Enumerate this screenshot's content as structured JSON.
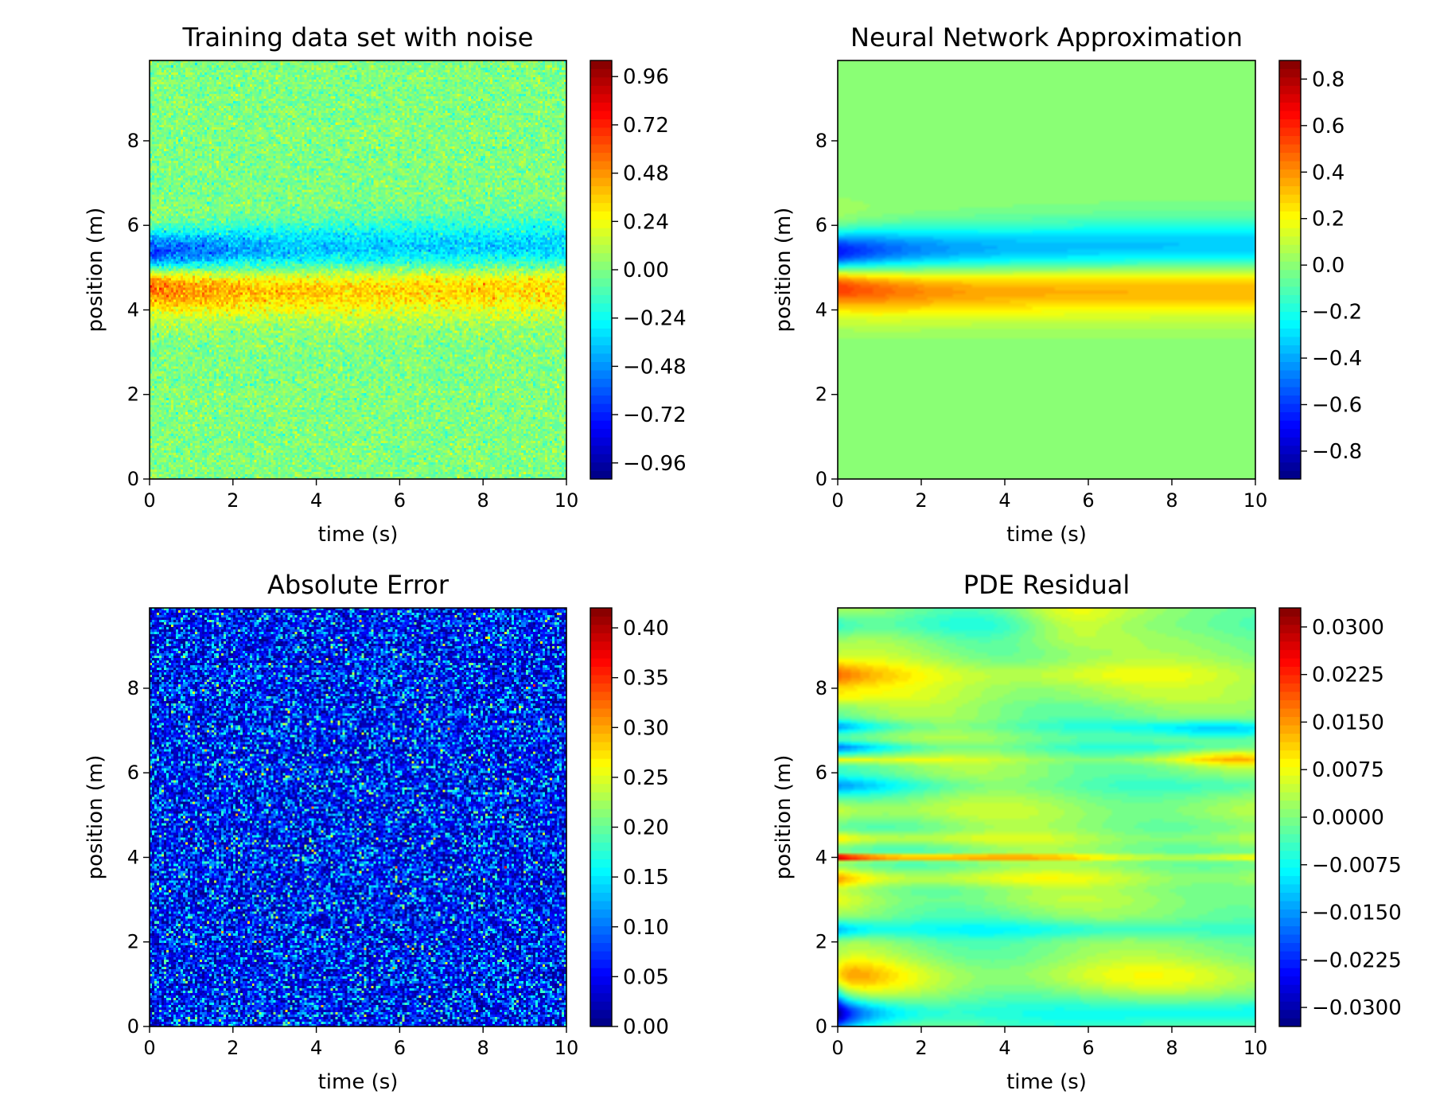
{
  "chart_data": [
    {
      "type": "heatmap",
      "title": "Training data set with noise",
      "xlabel": "time (s)",
      "ylabel": "position (m)",
      "xlim": [
        0,
        10
      ],
      "ylim": [
        0,
        9.9
      ],
      "x_ticks": [
        "0",
        "2",
        "4",
        "6",
        "8",
        "10"
      ],
      "y_ticks": [
        "0",
        "2",
        "4",
        "6",
        "8"
      ],
      "colormap": "jet",
      "colorbar": {
        "range": [
          -1.04,
          1.04
        ],
        "ticks": [
          -0.96,
          -0.72,
          -0.48,
          -0.24,
          0.0,
          0.24,
          0.48,
          0.72,
          0.96
        ],
        "tick_labels": [
          "−0.96",
          "−0.72",
          "−0.48",
          "−0.24",
          "0.00",
          "0.24",
          "0.48",
          "0.72",
          "0.96"
        ]
      },
      "field": "noisy damped wave: positive lobe near x = 4.5, negative lobe near x = 5.5, decaying with time"
    },
    {
      "type": "heatmap",
      "title": "Neural Network Approximation",
      "xlabel": "time (s)",
      "ylabel": "position (m)",
      "xlim": [
        0,
        10
      ],
      "ylim": [
        0,
        9.9
      ],
      "x_ticks": [
        "0",
        "2",
        "4",
        "6",
        "8",
        "10"
      ],
      "y_ticks": [
        "0",
        "2",
        "4",
        "6",
        "8"
      ],
      "colormap": "jet",
      "colorbar": {
        "range": [
          -0.92,
          0.88
        ],
        "ticks": [
          -0.8,
          -0.6,
          -0.4,
          -0.2,
          0.0,
          0.2,
          0.4,
          0.6,
          0.8
        ],
        "tick_labels": [
          "−0.8",
          "−0.6",
          "−0.4",
          "−0.2",
          "0.0",
          "0.2",
          "0.4",
          "0.6",
          "0.8"
        ]
      },
      "field": "smooth damped wave: maximum about 0.85 at t = 0, x = 4.5; minimum about -0.9 at t = 0, x = 5.5"
    },
    {
      "type": "heatmap",
      "title": "Absolute Error",
      "xlabel": "time (s)",
      "ylabel": "position (m)",
      "xlim": [
        0,
        10
      ],
      "ylim": [
        0,
        9.9
      ],
      "x_ticks": [
        "0",
        "2",
        "4",
        "6",
        "8",
        "10"
      ],
      "y_ticks": [
        "0",
        "2",
        "4",
        "6",
        "8"
      ],
      "colormap": "jet",
      "colorbar": {
        "range": [
          0.0,
          0.42
        ],
        "ticks": [
          0.0,
          0.05,
          0.1,
          0.15,
          0.2,
          0.25,
          0.3,
          0.35,
          0.4
        ],
        "tick_labels": [
          "0.00",
          "0.05",
          "0.10",
          "0.15",
          "0.20",
          "0.25",
          "0.30",
          "0.35",
          "0.40"
        ]
      },
      "field": "spatially uniform random noise, typical 0.0 to 0.2, peaks about 0.3"
    },
    {
      "type": "heatmap",
      "title": "PDE Residual",
      "xlabel": "time (s)",
      "ylabel": "position (m)",
      "xlim": [
        0,
        10
      ],
      "ylim": [
        0,
        9.9
      ],
      "x_ticks": [
        "0",
        "2",
        "4",
        "6",
        "8",
        "10"
      ],
      "y_ticks": [
        "0",
        "2",
        "4",
        "6",
        "8"
      ],
      "colormap": "jet",
      "colorbar": {
        "range": [
          -0.033,
          0.033
        ],
        "ticks": [
          -0.03,
          -0.0225,
          -0.015,
          -0.0075,
          0.0,
          0.0075,
          0.015,
          0.0225,
          0.03
        ],
        "tick_labels": [
          "−0.0300",
          "−0.0225",
          "−0.0150",
          "−0.0075",
          "0.0000",
          "0.0075",
          "0.0150",
          "0.0225",
          "0.0300"
        ]
      },
      "field": "smooth horizontal bands, strongest near t = 0 (max about 0.03 at x = 4.0, min about -0.025 near x = 4.0 and x = 0.5)"
    }
  ]
}
